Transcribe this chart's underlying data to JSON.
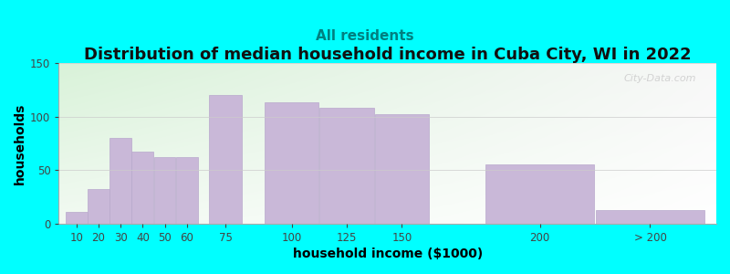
{
  "title": "Distribution of median household income in Cuba City, WI in 2022",
  "subtitle": "All residents",
  "xlabel": "household income ($1000)",
  "ylabel": "households",
  "background_color": "#00FFFF",
  "bar_color": "#C9B8D8",
  "bar_edge_color": "#B8A8CC",
  "categories": [
    "10",
    "20",
    "30",
    "40",
    "50",
    "60",
    "75",
    "100",
    "125",
    "150",
    "200",
    "> 200"
  ],
  "values": [
    11,
    32,
    80,
    67,
    62,
    62,
    120,
    113,
    108,
    102,
    55,
    13
  ],
  "bin_lefts": [
    10,
    20,
    30,
    40,
    50,
    60,
    75,
    100,
    125,
    150,
    200,
    250
  ],
  "bin_widths": [
    10,
    10,
    10,
    10,
    10,
    10,
    15,
    25,
    25,
    25,
    50,
    50
  ],
  "scale": 1.5,
  "ylim": [
    0,
    150
  ],
  "yticks": [
    0,
    50,
    100,
    150
  ],
  "title_fontsize": 13,
  "subtitle_fontsize": 11,
  "axis_label_fontsize": 10,
  "tick_fontsize": 8.5,
  "watermark_text": "City-Data.com",
  "subtitle_color": "#008080",
  "grad_color_topleft": [
    0.85,
    0.95,
    0.85
  ],
  "grad_color_topright": [
    0.97,
    0.97,
    0.97
  ],
  "grad_color_bottomleft": [
    0.95,
    0.98,
    0.95
  ],
  "grad_color_bottomright": [
    1.0,
    1.0,
    1.0
  ]
}
